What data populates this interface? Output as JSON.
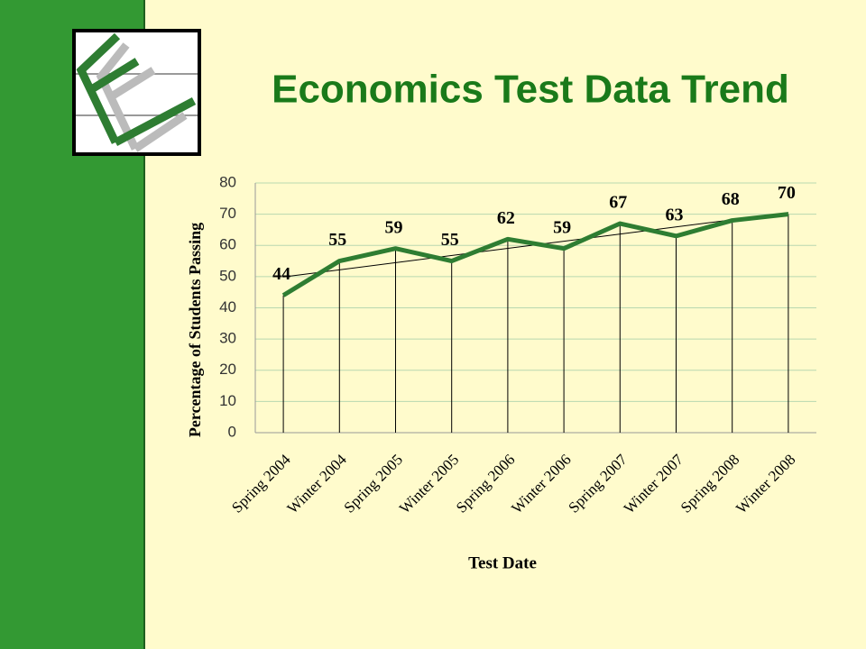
{
  "chart_data": {
    "type": "line",
    "title": "Economics Test Data Trend",
    "x_label": "Test Date",
    "y_label": "Percentage of Students Passing",
    "categories": [
      "Spring 2004",
      "Winter 2004",
      "Spring 2005",
      "Winter 2005",
      "Spring 2006",
      "Winter 2006",
      "Spring 2007",
      "Winter 2007",
      "Spring 2008",
      "Winter 2008"
    ],
    "series": [
      {
        "name": "Percentage of Students Passing",
        "color": "#2e7d32",
        "values": [
          44,
          55,
          59,
          55,
          62,
          59,
          67,
          63,
          68,
          70
        ]
      }
    ],
    "ylim": [
      0,
      80
    ],
    "yticks": [
      0,
      10,
      20,
      30,
      40,
      50,
      60,
      70,
      80
    ],
    "grid": true,
    "trendline": true,
    "drop_lines": true,
    "data_labels": true
  }
}
